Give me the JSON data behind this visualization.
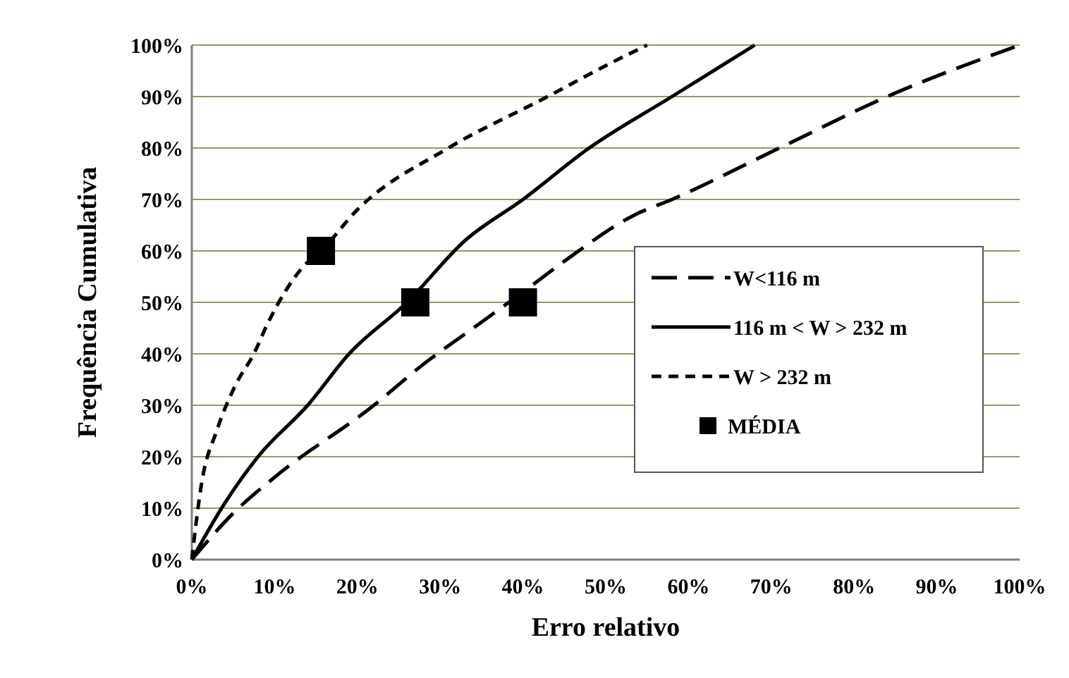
{
  "chart_data": {
    "type": "line",
    "xlabel": "Erro relativo",
    "ylabel": "Frequência Cumulativa",
    "xlim": [
      0,
      100
    ],
    "ylim": [
      0,
      100
    ],
    "xticks": [
      {
        "value": 0,
        "label": "0%"
      },
      {
        "value": 10,
        "label": "10%"
      },
      {
        "value": 20,
        "label": "20%"
      },
      {
        "value": 30,
        "label": "30%"
      },
      {
        "value": 40,
        "label": "40%"
      },
      {
        "value": 50,
        "label": "50%"
      },
      {
        "value": 60,
        "label": "60%"
      },
      {
        "value": 70,
        "label": "70%"
      },
      {
        "value": 80,
        "label": "80%"
      },
      {
        "value": 90,
        "label": "90%"
      },
      {
        "value": 100,
        "label": "100%"
      }
    ],
    "yticks": [
      {
        "value": 0,
        "label": "0%"
      },
      {
        "value": 10,
        "label": "10%"
      },
      {
        "value": 20,
        "label": "20%"
      },
      {
        "value": 30,
        "label": "30%"
      },
      {
        "value": 40,
        "label": "40%"
      },
      {
        "value": 50,
        "label": "50%"
      },
      {
        "value": 60,
        "label": "60%"
      },
      {
        "value": 70,
        "label": "70%"
      },
      {
        "value": 80,
        "label": "80%"
      },
      {
        "value": 90,
        "label": "90%"
      },
      {
        "value": 100,
        "label": "100%"
      }
    ],
    "grid": "y",
    "legend": "right",
    "series": [
      {
        "name": "W<116 m",
        "color": "#000000",
        "line_style": "dashed",
        "marker": "none",
        "x": [
          0,
          5,
          10,
          22,
          28,
          34,
          40,
          45,
          53.5,
          58,
          71,
          84,
          100
        ],
        "values": [
          0,
          9,
          16,
          30,
          38,
          45,
          52,
          58,
          67,
          70,
          80,
          90,
          100
        ]
      },
      {
        "name": "116 m < W > 232 m",
        "color": "#000000",
        "line_style": "solid",
        "marker": "none",
        "x": [
          0,
          4,
          8,
          14,
          19,
          26,
          33,
          40,
          48,
          58,
          68
        ],
        "values": [
          0,
          11,
          20,
          30,
          40,
          50,
          62,
          70,
          80,
          90,
          100
        ]
      },
      {
        "name": "W > 232 m",
        "color": "#000000",
        "line_style": "dotted",
        "marker": "none",
        "x": [
          0,
          1.2,
          3,
          5.3,
          7.5,
          9.2,
          13.5,
          15.6,
          20,
          31,
          43,
          50,
          55
        ],
        "values": [
          0,
          15,
          25,
          34,
          40,
          46,
          57,
          60,
          68,
          80,
          90,
          96,
          100
        ]
      },
      {
        "name": "MÉDIA",
        "type": "scatter",
        "color": "#000000",
        "marker": "square",
        "x": [
          15.6,
          27,
          40
        ],
        "values": [
          60,
          50,
          50
        ]
      }
    ]
  }
}
